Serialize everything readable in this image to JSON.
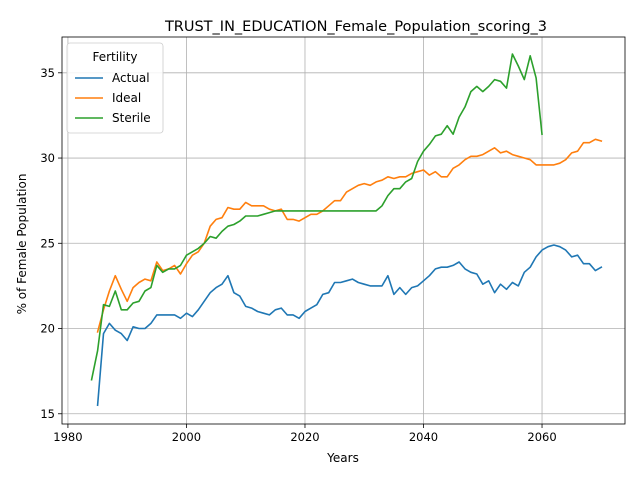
{
  "chart_data": {
    "type": "line",
    "title": "TRUST_IN_EDUCATION_Female_Population_scoring_3",
    "xlabel": "Years",
    "ylabel": "% of Female Population",
    "xlim": [
      1979,
      2074
    ],
    "ylim": [
      14.4,
      37.1
    ],
    "x_ticks": [
      1980,
      2000,
      2020,
      2040,
      2060
    ],
    "y_ticks": [
      15,
      20,
      25,
      30,
      35
    ],
    "grid": true,
    "legend": {
      "title": "Fertility",
      "placement": "top-left"
    },
    "series": [
      {
        "name": "Actual",
        "color": "#1f77b4",
        "points": [
          [
            1985,
            15.5
          ],
          [
            1986,
            19.7
          ],
          [
            1987,
            20.3
          ],
          [
            1988,
            19.9
          ],
          [
            1989,
            19.7
          ],
          [
            1990,
            19.3
          ],
          [
            1991,
            20.1
          ],
          [
            1992,
            20.0
          ],
          [
            1993,
            20.0
          ],
          [
            1994,
            20.3
          ],
          [
            1995,
            20.8
          ],
          [
            1996,
            20.8
          ],
          [
            1997,
            20.8
          ],
          [
            1998,
            20.8
          ],
          [
            1999,
            20.6
          ],
          [
            2000,
            20.9
          ],
          [
            2001,
            20.7
          ],
          [
            2002,
            21.1
          ],
          [
            2003,
            21.6
          ],
          [
            2004,
            22.1
          ],
          [
            2005,
            22.4
          ],
          [
            2006,
            22.6
          ],
          [
            2007,
            23.1
          ],
          [
            2008,
            22.1
          ],
          [
            2009,
            21.9
          ],
          [
            2010,
            21.3
          ],
          [
            2011,
            21.2
          ],
          [
            2012,
            21.0
          ],
          [
            2013,
            20.9
          ],
          [
            2014,
            20.8
          ],
          [
            2015,
            21.1
          ],
          [
            2016,
            21.2
          ],
          [
            2017,
            20.8
          ],
          [
            2018,
            20.8
          ],
          [
            2019,
            20.6
          ],
          [
            2020,
            21.0
          ],
          [
            2021,
            21.2
          ],
          [
            2022,
            21.4
          ],
          [
            2023,
            22.0
          ],
          [
            2024,
            22.1
          ],
          [
            2025,
            22.7
          ],
          [
            2026,
            22.7
          ],
          [
            2027,
            22.8
          ],
          [
            2028,
            22.9
          ],
          [
            2029,
            22.7
          ],
          [
            2030,
            22.6
          ],
          [
            2031,
            22.5
          ],
          [
            2032,
            22.5
          ],
          [
            2033,
            22.5
          ],
          [
            2034,
            23.1
          ],
          [
            2035,
            22.0
          ],
          [
            2036,
            22.4
          ],
          [
            2037,
            22.0
          ],
          [
            2038,
            22.4
          ],
          [
            2039,
            22.5
          ],
          [
            2040,
            22.8
          ],
          [
            2041,
            23.1
          ],
          [
            2042,
            23.5
          ],
          [
            2043,
            23.6
          ],
          [
            2044,
            23.6
          ],
          [
            2045,
            23.7
          ],
          [
            2046,
            23.9
          ],
          [
            2047,
            23.5
          ],
          [
            2048,
            23.3
          ],
          [
            2049,
            23.2
          ],
          [
            2050,
            22.6
          ],
          [
            2051,
            22.8
          ],
          [
            2052,
            22.1
          ],
          [
            2053,
            22.6
          ],
          [
            2054,
            22.3
          ],
          [
            2055,
            22.7
          ],
          [
            2056,
            22.5
          ],
          [
            2057,
            23.3
          ],
          [
            2058,
            23.6
          ],
          [
            2059,
            24.2
          ],
          [
            2060,
            24.6
          ],
          [
            2061,
            24.8
          ],
          [
            2062,
            24.9
          ],
          [
            2063,
            24.8
          ],
          [
            2064,
            24.6
          ],
          [
            2065,
            24.2
          ],
          [
            2066,
            24.3
          ],
          [
            2067,
            23.8
          ],
          [
            2068,
            23.8
          ],
          [
            2069,
            23.4
          ],
          [
            2070,
            23.6
          ]
        ]
      },
      {
        "name": "Ideal",
        "color": "#ff7f0e",
        "points": [
          [
            1985,
            19.8
          ],
          [
            1986,
            21.1
          ],
          [
            1987,
            22.2
          ],
          [
            1988,
            23.1
          ],
          [
            1989,
            22.3
          ],
          [
            1990,
            21.6
          ],
          [
            1991,
            22.4
          ],
          [
            1992,
            22.7
          ],
          [
            1993,
            22.9
          ],
          [
            1994,
            22.8
          ],
          [
            1995,
            23.9
          ],
          [
            1996,
            23.4
          ],
          [
            1997,
            23.5
          ],
          [
            1998,
            23.7
          ],
          [
            1999,
            23.2
          ],
          [
            2000,
            23.8
          ],
          [
            2001,
            24.3
          ],
          [
            2002,
            24.5
          ],
          [
            2003,
            25.0
          ],
          [
            2004,
            26.0
          ],
          [
            2005,
            26.4
          ],
          [
            2006,
            26.5
          ],
          [
            2007,
            27.1
          ],
          [
            2008,
            27.0
          ],
          [
            2009,
            27.0
          ],
          [
            2010,
            27.4
          ],
          [
            2011,
            27.2
          ],
          [
            2012,
            27.2
          ],
          [
            2013,
            27.2
          ],
          [
            2014,
            27.0
          ],
          [
            2015,
            26.9
          ],
          [
            2016,
            27.0
          ],
          [
            2017,
            26.4
          ],
          [
            2018,
            26.4
          ],
          [
            2019,
            26.3
          ],
          [
            2020,
            26.5
          ],
          [
            2021,
            26.7
          ],
          [
            2022,
            26.7
          ],
          [
            2023,
            26.9
          ],
          [
            2024,
            27.2
          ],
          [
            2025,
            27.5
          ],
          [
            2026,
            27.5
          ],
          [
            2027,
            28.0
          ],
          [
            2028,
            28.2
          ],
          [
            2029,
            28.4
          ],
          [
            2030,
            28.5
          ],
          [
            2031,
            28.4
          ],
          [
            2032,
            28.6
          ],
          [
            2033,
            28.7
          ],
          [
            2034,
            28.9
          ],
          [
            2035,
            28.8
          ],
          [
            2036,
            28.9
          ],
          [
            2037,
            28.9
          ],
          [
            2038,
            29.1
          ],
          [
            2039,
            29.2
          ],
          [
            2040,
            29.3
          ],
          [
            2041,
            29.0
          ],
          [
            2042,
            29.2
          ],
          [
            2043,
            28.9
          ],
          [
            2044,
            28.9
          ],
          [
            2045,
            29.4
          ],
          [
            2046,
            29.6
          ],
          [
            2047,
            29.9
          ],
          [
            2048,
            30.1
          ],
          [
            2049,
            30.1
          ],
          [
            2050,
            30.2
          ],
          [
            2051,
            30.4
          ],
          [
            2052,
            30.6
          ],
          [
            2053,
            30.3
          ],
          [
            2054,
            30.4
          ],
          [
            2055,
            30.2
          ],
          [
            2056,
            30.1
          ],
          [
            2057,
            30.0
          ],
          [
            2058,
            29.9
          ],
          [
            2059,
            29.6
          ],
          [
            2060,
            29.6
          ],
          [
            2061,
            29.6
          ],
          [
            2062,
            29.6
          ],
          [
            2063,
            29.7
          ],
          [
            2064,
            29.9
          ],
          [
            2065,
            30.3
          ],
          [
            2066,
            30.4
          ],
          [
            2067,
            30.9
          ],
          [
            2068,
            30.9
          ],
          [
            2069,
            31.1
          ],
          [
            2070,
            31.0
          ]
        ]
      },
      {
        "name": "Sterile",
        "color": "#2ca02c",
        "points": [
          [
            1984,
            17.0
          ],
          [
            1985,
            18.7
          ],
          [
            1986,
            21.4
          ],
          [
            1987,
            21.3
          ],
          [
            1988,
            22.2
          ],
          [
            1989,
            21.1
          ],
          [
            1990,
            21.1
          ],
          [
            1991,
            21.5
          ],
          [
            1992,
            21.6
          ],
          [
            1993,
            22.2
          ],
          [
            1994,
            22.4
          ],
          [
            1995,
            23.7
          ],
          [
            1996,
            23.3
          ],
          [
            1997,
            23.5
          ],
          [
            1998,
            23.5
          ],
          [
            1999,
            23.7
          ],
          [
            2000,
            24.3
          ],
          [
            2001,
            24.5
          ],
          [
            2002,
            24.7
          ],
          [
            2003,
            25.0
          ],
          [
            2004,
            25.4
          ],
          [
            2005,
            25.3
          ],
          [
            2006,
            25.7
          ],
          [
            2007,
            26.0
          ],
          [
            2008,
            26.1
          ],
          [
            2009,
            26.3
          ],
          [
            2010,
            26.6
          ],
          [
            2011,
            26.6
          ],
          [
            2012,
            26.6
          ],
          [
            2013,
            26.7
          ],
          [
            2014,
            26.8
          ],
          [
            2015,
            26.9
          ],
          [
            2016,
            26.9
          ],
          [
            2017,
            26.9
          ],
          [
            2018,
            26.9
          ],
          [
            2019,
            26.9
          ],
          [
            2020,
            26.9
          ],
          [
            2021,
            26.9
          ],
          [
            2022,
            26.9
          ],
          [
            2023,
            26.9
          ],
          [
            2024,
            26.9
          ],
          [
            2025,
            26.9
          ],
          [
            2026,
            26.9
          ],
          [
            2027,
            26.9
          ],
          [
            2028,
            26.9
          ],
          [
            2029,
            26.9
          ],
          [
            2030,
            26.9
          ],
          [
            2031,
            26.9
          ],
          [
            2032,
            26.9
          ],
          [
            2033,
            27.2
          ],
          [
            2034,
            27.8
          ],
          [
            2035,
            28.2
          ],
          [
            2036,
            28.2
          ],
          [
            2037,
            28.6
          ],
          [
            2038,
            28.8
          ],
          [
            2039,
            29.8
          ],
          [
            2040,
            30.4
          ],
          [
            2041,
            30.8
          ],
          [
            2042,
            31.3
          ],
          [
            2043,
            31.4
          ],
          [
            2044,
            31.9
          ],
          [
            2045,
            31.4
          ],
          [
            2046,
            32.4
          ],
          [
            2047,
            33.0
          ],
          [
            2048,
            33.9
          ],
          [
            2049,
            34.2
          ],
          [
            2050,
            33.9
          ],
          [
            2051,
            34.2
          ],
          [
            2052,
            34.6
          ],
          [
            2053,
            34.5
          ],
          [
            2054,
            34.1
          ],
          [
            2055,
            36.1
          ],
          [
            2056,
            35.4
          ],
          [
            2057,
            34.6
          ],
          [
            2058,
            36.0
          ],
          [
            2059,
            34.7
          ],
          [
            2060,
            31.4
          ]
        ]
      }
    ]
  }
}
